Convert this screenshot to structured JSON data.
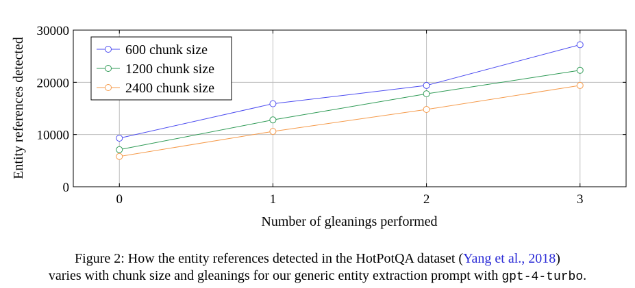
{
  "chart_data": {
    "type": "line",
    "x": [
      0,
      1,
      2,
      3
    ],
    "xticks": [
      "0",
      "1",
      "2",
      "3"
    ],
    "yticks": [
      "0",
      "10000",
      "20000",
      "30000"
    ],
    "xlim": [
      -0.3,
      3.3
    ],
    "ylim": [
      0,
      30000
    ],
    "grid": true,
    "xlabel": "Number of gleanings performed",
    "ylabel": "Entity references detected",
    "legend_position": "top-left",
    "series": [
      {
        "name": "600 chunk size",
        "color": "#4b4bf0",
        "values": [
          9300,
          15900,
          19400,
          27200
        ]
      },
      {
        "name": "1200 chunk size",
        "color": "#2e9a55",
        "values": [
          7100,
          12800,
          17800,
          22300
        ]
      },
      {
        "name": "2400 chunk size",
        "color": "#f59a4a",
        "values": [
          5800,
          10600,
          14800,
          19400
        ]
      }
    ]
  },
  "caption": {
    "prefix": "Figure 2: How the entity references detected in the HotPotQA dataset (",
    "citation": "Yang et al., 2018",
    "suffix": ")",
    "line2_prefix": "varies with chunk size and gleanings for our generic entity extraction prompt with ",
    "model": "gpt-4-turbo",
    "line2_suffix": "."
  }
}
